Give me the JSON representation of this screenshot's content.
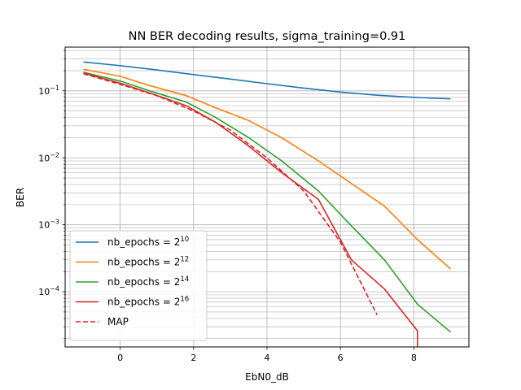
{
  "chart_data": {
    "type": "line",
    "title": "NN BER decoding results, sigma_training=0.91",
    "xlabel": "EbN0_dB",
    "ylabel": "BER",
    "xlim": [
      -1.5,
      9.5
    ],
    "ylim": [
      1.5e-05,
      0.45
    ],
    "y_scale": "log",
    "grid": "on (major and minor)",
    "legend_position": "lower-left",
    "x_ticks": [
      0,
      2,
      4,
      6,
      8
    ],
    "x_tick_labels": [
      "0",
      "2",
      "4",
      "6",
      "8"
    ],
    "y_major_ticks": [
      {
        "value": 0.1,
        "base": "10",
        "exp": "−1"
      },
      {
        "value": 0.01,
        "base": "10",
        "exp": "−2"
      },
      {
        "value": 0.001,
        "base": "10",
        "exp": "−3"
      },
      {
        "value": 0.0001,
        "base": "10",
        "exp": "−4"
      }
    ],
    "series": [
      {
        "name": "nb_epochs = 2^10",
        "legend_base": "nb_epochs = 2",
        "legend_exp": "10",
        "color": "#1f77b4",
        "dash": "solid",
        "x": [
          -1,
          0,
          1,
          2,
          3,
          4,
          5,
          6,
          7,
          8,
          9
        ],
        "y": [
          0.27,
          0.238,
          0.205,
          0.175,
          0.15,
          0.128,
          0.11,
          0.096,
          0.086,
          0.08,
          0.076
        ]
      },
      {
        "name": "nb_epochs = 2^12",
        "legend_base": "nb_epochs = 2",
        "legend_exp": "12",
        "color": "#ff7f0e",
        "dash": "solid",
        "x": [
          -1,
          0,
          0.8,
          1.8,
          2.6,
          3.5,
          4.4,
          5.4,
          6.2,
          7.2,
          8.1,
          9
        ],
        "y": [
          0.21,
          0.165,
          0.12,
          0.085,
          0.056,
          0.036,
          0.02,
          0.009,
          0.0045,
          0.0019,
          0.0006,
          0.00022
        ]
      },
      {
        "name": "nb_epochs = 2^14",
        "legend_base": "nb_epochs = 2",
        "legend_exp": "14",
        "color": "#2ca02c",
        "dash": "solid",
        "x": [
          -1,
          0,
          0.8,
          1.8,
          2.6,
          3.5,
          4.4,
          5.4,
          6.2,
          7.2,
          8.1,
          9
        ],
        "y": [
          0.19,
          0.14,
          0.1,
          0.068,
          0.04,
          0.02,
          0.009,
          0.0032,
          0.0011,
          0.0003,
          6.5e-05,
          2.5e-05
        ]
      },
      {
        "name": "nb_epochs = 2^16",
        "legend_base": "nb_epochs = 2",
        "legend_exp": "16",
        "color": "#d62728",
        "dash": "solid",
        "x": [
          -1,
          0,
          0.8,
          1.8,
          2.6,
          3.5,
          4.4,
          5.4,
          6.3,
          7.2,
          8.1,
          8.1
        ],
        "y": [
          0.185,
          0.13,
          0.093,
          0.06,
          0.034,
          0.015,
          0.006,
          0.0024,
          0.0003,
          0.00011,
          2.6e-05,
          1.5e-05
        ]
      },
      {
        "name": "MAP",
        "legend_base": "MAP",
        "legend_exp": "",
        "color": "#d62728",
        "dash": "dashed",
        "x": [
          -1,
          0,
          1,
          2,
          3,
          4,
          5,
          6,
          7
        ],
        "y": [
          0.18,
          0.125,
          0.085,
          0.05,
          0.026,
          0.01,
          0.0032,
          0.00055,
          4.5e-05
        ]
      }
    ]
  }
}
